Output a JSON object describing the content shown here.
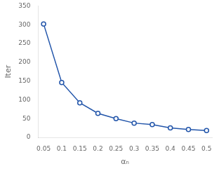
{
  "chart_data": {
    "type": "line",
    "x": [
      0.05,
      0.1,
      0.15,
      0.2,
      0.25,
      0.3,
      0.35,
      0.4,
      0.45,
      0.5
    ],
    "values": [
      302,
      146,
      92,
      64,
      50,
      38,
      34,
      25,
      21,
      18
    ],
    "color": "#2255aa",
    "marker": "circle",
    "xlabel": "αₙ",
    "ylabel": "Iter",
    "xlim": [
      0.035,
      0.515
    ],
    "xticks": [
      0.05,
      0.1,
      0.15,
      0.2,
      0.25,
      0.3,
      0.35,
      0.4,
      0.45,
      0.5
    ],
    "ylim": [
      0,
      350
    ],
    "yticks": [
      0,
      50,
      100,
      150,
      200,
      250,
      300,
      350
    ],
    "grid": false
  }
}
